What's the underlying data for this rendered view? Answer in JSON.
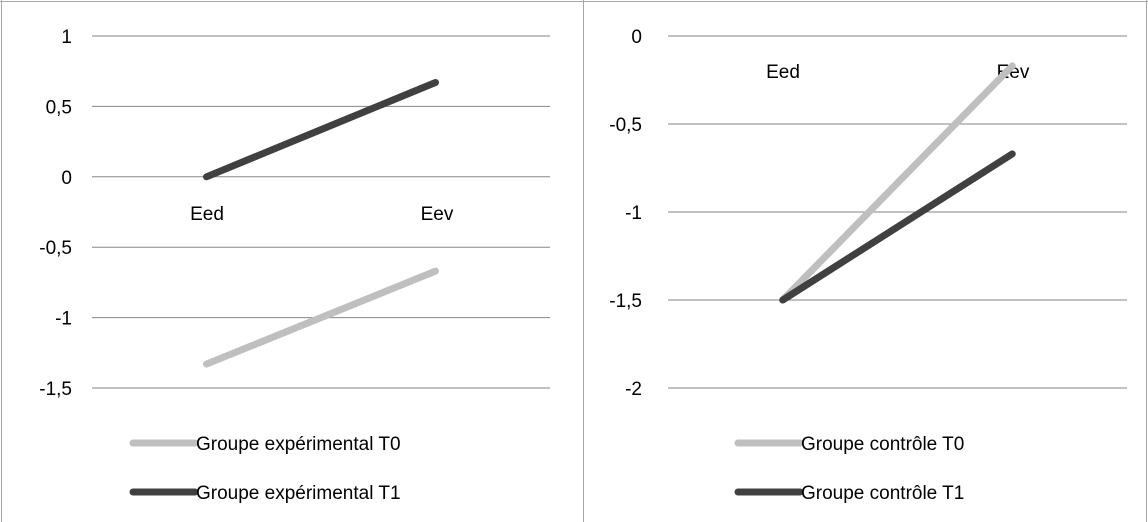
{
  "colors": {
    "light_series": "#bfbfbf",
    "dark_series": "#404040",
    "grid": "#868686",
    "border": "#a6a6a6"
  },
  "chart_data": [
    {
      "type": "line",
      "categories": [
        "Eed",
        "Eev"
      ],
      "ylim": [
        -1.5,
        1
      ],
      "yticks": [
        1,
        0.5,
        0,
        -0.5,
        -1,
        -1.5
      ],
      "ytick_labels": [
        "1",
        "0,5",
        "0",
        "-0,5",
        "-1",
        "-1,5"
      ],
      "grid": true,
      "legend": "bottom",
      "series": [
        {
          "name": "Groupe expérimental T0",
          "values": [
            -1.33,
            -0.67
          ]
        },
        {
          "name": "Groupe expérimental T1",
          "values": [
            0,
            0.67
          ]
        }
      ]
    },
    {
      "type": "line",
      "categories": [
        "Eed",
        "Eev"
      ],
      "ylim": [
        -2,
        0
      ],
      "yticks": [
        0,
        -0.5,
        -1,
        -1.5,
        -2
      ],
      "ytick_labels": [
        "0",
        "-0,5",
        "-1",
        "-1,5",
        "-2"
      ],
      "grid": true,
      "legend": "bottom",
      "series": [
        {
          "name": "Groupe contrôle T0",
          "values": [
            -1.5,
            -0.17
          ]
        },
        {
          "name": "Groupe contrôle T1",
          "values": [
            -1.5,
            -0.67
          ]
        }
      ]
    }
  ]
}
